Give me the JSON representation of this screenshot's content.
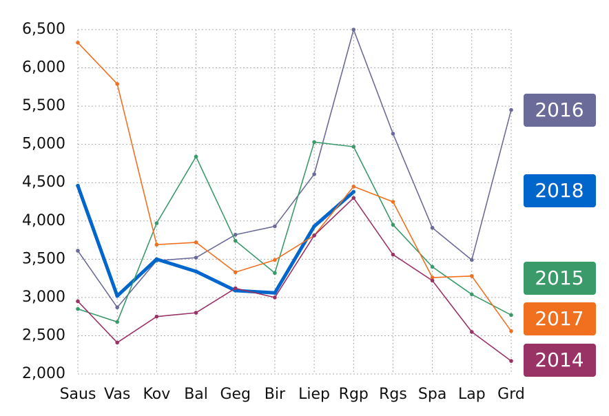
{
  "chart_data": {
    "type": "line",
    "categories": [
      "Saus",
      "Vas",
      "Kov",
      "Bal",
      "Geg",
      "Bir",
      "Liep",
      "Rgp",
      "Rgs",
      "Spa",
      "Lap",
      "Grd"
    ],
    "series": [
      {
        "name": "2016",
        "color": "#6b6b9a",
        "values": [
          3610,
          2870,
          3480,
          3520,
          3820,
          3930,
          4610,
          6500,
          5140,
          3910,
          3490,
          5450
        ]
      },
      {
        "name": "2018",
        "color": "#0066cc",
        "values": [
          4460,
          3020,
          3500,
          3340,
          3090,
          3060,
          3930,
          4380,
          null,
          null,
          null,
          null
        ]
      },
      {
        "name": "2015",
        "color": "#3a9a6a",
        "values": [
          2850,
          2680,
          3970,
          4840,
          3740,
          3320,
          5030,
          4970,
          3950,
          3400,
          3040,
          2770
        ]
      },
      {
        "name": "2017",
        "color": "#f07020",
        "values": [
          6330,
          5790,
          3690,
          3720,
          3330,
          3490,
          3810,
          4450,
          4250,
          3260,
          3280,
          2560
        ]
      },
      {
        "name": "2014",
        "color": "#993366",
        "values": [
          2950,
          2410,
          2750,
          2800,
          3120,
          3000,
          3810,
          4300,
          3560,
          3220,
          2550,
          2170
        ]
      }
    ],
    "ylim": [
      2000,
      6500
    ],
    "yticks": [
      {
        "value": 2000,
        "label": "2,000"
      },
      {
        "value": 2500,
        "label": "2,500"
      },
      {
        "value": 3000,
        "label": "3,000"
      },
      {
        "value": 3500,
        "label": "3,500"
      },
      {
        "value": 4000,
        "label": "4,000"
      },
      {
        "value": 4500,
        "label": "4,500"
      },
      {
        "value": 5000,
        "label": "5,000"
      },
      {
        "value": 5500,
        "label": "5,500"
      },
      {
        "value": 6000,
        "label": "6,000"
      },
      {
        "value": 6500,
        "label": "6,500"
      }
    ],
    "grid": true
  }
}
